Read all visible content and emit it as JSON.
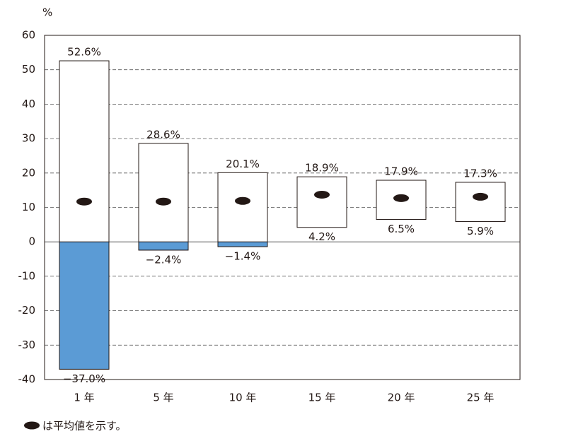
{
  "chart_data": {
    "type": "floating-bar",
    "y_axis_label": "%",
    "categories": [
      "1 年",
      "5 年",
      "10 年",
      "15 年",
      "20 年",
      "25 年"
    ],
    "max": {
      "values": [
        52.6,
        28.6,
        20.1,
        18.9,
        17.9,
        17.3
      ],
      "value_labels": [
        "52.6%",
        "28.6%",
        "20.1%",
        "18.9%",
        "17.9%",
        "17.3%"
      ]
    },
    "min": {
      "values": [
        -37.0,
        -2.4,
        -1.4,
        4.2,
        6.5,
        5.9
      ],
      "value_labels": [
        "−37.0%",
        "−2.4%",
        "−1.4%",
        "4.2%",
        "6.5%",
        "5.9%"
      ],
      "color": "#5b9bd5"
    },
    "mean": {
      "name": "は平均値を示す。",
      "values": [
        11.7,
        11.7,
        11.9,
        13.7,
        12.7,
        13.1
      ],
      "color": "#231815"
    },
    "ylim": [
      -40,
      60
    ],
    "yticks": [
      60,
      50,
      40,
      30,
      20,
      10,
      0,
      -10,
      -20,
      -30,
      -40
    ],
    "grid": true
  }
}
